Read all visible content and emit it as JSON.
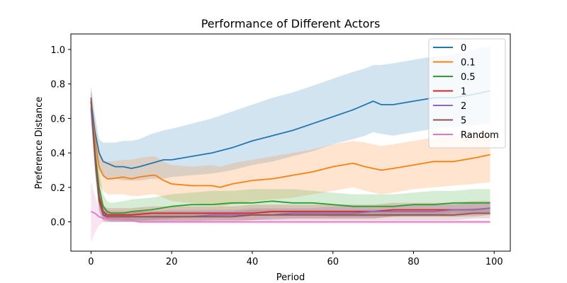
{
  "chart_data": {
    "type": "line",
    "title": "Performance of Different Actors",
    "xlabel": "Period",
    "ylabel": "Preference Distance",
    "xlim": [
      -5,
      104
    ],
    "ylim": [
      -0.17,
      1.09
    ],
    "xticks": [
      0,
      20,
      40,
      60,
      80,
      100
    ],
    "xtick_labels": [
      "0",
      "20",
      "40",
      "60",
      "80",
      "100"
    ],
    "yticks": [
      0.0,
      0.2,
      0.4,
      0.6,
      0.8,
      1.0
    ],
    "ytick_labels": [
      "0.0",
      "0.2",
      "0.4",
      "0.6",
      "0.8",
      "1.0"
    ],
    "grid": false,
    "legend_position": "top-right",
    "legend_labels": [
      "0",
      "0.1",
      "0.5",
      "1",
      "2",
      "5",
      "Random"
    ],
    "series": [
      {
        "name": "0",
        "color": "#1f77b4",
        "x": [
          0,
          1,
          2,
          3,
          4,
          5,
          6,
          8,
          10,
          12,
          15,
          18,
          20,
          25,
          30,
          35,
          40,
          45,
          50,
          55,
          60,
          65,
          68,
          70,
          72,
          75,
          80,
          85,
          90,
          95,
          99
        ],
        "mean": [
          0.7,
          0.52,
          0.4,
          0.35,
          0.34,
          0.33,
          0.32,
          0.32,
          0.31,
          0.32,
          0.34,
          0.36,
          0.36,
          0.38,
          0.4,
          0.43,
          0.47,
          0.5,
          0.53,
          0.57,
          0.61,
          0.65,
          0.68,
          0.7,
          0.68,
          0.68,
          0.7,
          0.72,
          0.72,
          0.74,
          0.76
        ],
        "upper": [
          0.79,
          0.62,
          0.48,
          0.46,
          0.46,
          0.46,
          0.46,
          0.47,
          0.47,
          0.48,
          0.51,
          0.53,
          0.54,
          0.57,
          0.6,
          0.64,
          0.68,
          0.72,
          0.75,
          0.79,
          0.83,
          0.87,
          0.89,
          0.91,
          0.91,
          0.92,
          0.94,
          0.96,
          0.97,
          1.0,
          1.02
        ],
        "lower": [
          0.61,
          0.42,
          0.3,
          0.26,
          0.25,
          0.25,
          0.25,
          0.24,
          0.24,
          0.24,
          0.25,
          0.25,
          0.26,
          0.27,
          0.28,
          0.3,
          0.33,
          0.35,
          0.38,
          0.41,
          0.45,
          0.48,
          0.5,
          0.52,
          0.51,
          0.5,
          0.52,
          0.54,
          0.55,
          0.56,
          0.57
        ]
      },
      {
        "name": "0.1",
        "color": "#ff7f0e",
        "x": [
          0,
          1,
          2,
          3,
          4,
          5,
          8,
          10,
          12,
          15,
          16,
          18,
          20,
          25,
          30,
          32,
          35,
          40,
          45,
          50,
          55,
          60,
          65,
          68,
          72,
          75,
          80,
          85,
          90,
          95,
          99
        ],
        "mean": [
          0.67,
          0.48,
          0.32,
          0.27,
          0.25,
          0.25,
          0.26,
          0.25,
          0.26,
          0.27,
          0.27,
          0.24,
          0.22,
          0.21,
          0.21,
          0.2,
          0.22,
          0.24,
          0.25,
          0.27,
          0.29,
          0.32,
          0.34,
          0.32,
          0.3,
          0.31,
          0.33,
          0.35,
          0.35,
          0.37,
          0.39
        ],
        "upper": [
          0.76,
          0.58,
          0.42,
          0.36,
          0.35,
          0.35,
          0.36,
          0.36,
          0.37,
          0.38,
          0.38,
          0.35,
          0.33,
          0.32,
          0.33,
          0.32,
          0.34,
          0.36,
          0.38,
          0.4,
          0.42,
          0.45,
          0.47,
          0.46,
          0.44,
          0.45,
          0.47,
          0.49,
          0.5,
          0.52,
          0.54
        ],
        "lower": [
          0.58,
          0.38,
          0.22,
          0.18,
          0.16,
          0.16,
          0.16,
          0.15,
          0.15,
          0.16,
          0.16,
          0.14,
          0.12,
          0.11,
          0.1,
          0.09,
          0.1,
          0.12,
          0.13,
          0.14,
          0.16,
          0.18,
          0.2,
          0.18,
          0.16,
          0.17,
          0.19,
          0.2,
          0.21,
          0.22,
          0.23
        ]
      },
      {
        "name": "0.5",
        "color": "#2ca02c",
        "x": [
          0,
          1,
          2,
          3,
          4,
          5,
          8,
          10,
          15,
          20,
          25,
          30,
          35,
          40,
          45,
          50,
          55,
          60,
          65,
          70,
          75,
          80,
          85,
          90,
          95,
          99
        ],
        "mean": [
          0.7,
          0.4,
          0.2,
          0.09,
          0.06,
          0.05,
          0.05,
          0.06,
          0.07,
          0.09,
          0.1,
          0.1,
          0.11,
          0.11,
          0.12,
          0.11,
          0.11,
          0.1,
          0.09,
          0.09,
          0.09,
          0.1,
          0.1,
          0.11,
          0.11,
          0.11
        ],
        "upper": [
          0.78,
          0.5,
          0.3,
          0.16,
          0.12,
          0.11,
          0.12,
          0.13,
          0.14,
          0.16,
          0.17,
          0.18,
          0.18,
          0.19,
          0.19,
          0.19,
          0.18,
          0.17,
          0.16,
          0.16,
          0.16,
          0.17,
          0.18,
          0.18,
          0.19,
          0.19
        ],
        "lower": [
          0.62,
          0.3,
          0.12,
          0.03,
          0.01,
          0.0,
          0.0,
          0.0,
          0.01,
          0.02,
          0.03,
          0.03,
          0.04,
          0.04,
          0.05,
          0.04,
          0.04,
          0.03,
          0.03,
          0.03,
          0.03,
          0.04,
          0.04,
          0.05,
          0.05,
          0.05
        ]
      },
      {
        "name": "1",
        "color": "#d62728",
        "x": [
          0,
          1,
          2,
          3,
          4,
          5,
          8,
          10,
          15,
          20,
          25,
          30,
          35,
          40,
          45,
          50,
          55,
          60,
          65,
          70,
          75,
          80,
          85,
          90,
          95,
          99
        ],
        "mean": [
          0.7,
          0.38,
          0.15,
          0.06,
          0.04,
          0.04,
          0.04,
          0.04,
          0.05,
          0.05,
          0.05,
          0.05,
          0.05,
          0.05,
          0.06,
          0.06,
          0.06,
          0.06,
          0.06,
          0.06,
          0.07,
          0.07,
          0.07,
          0.07,
          0.07,
          0.08
        ],
        "upper": [
          0.76,
          0.46,
          0.22,
          0.1,
          0.08,
          0.08,
          0.08,
          0.08,
          0.09,
          0.09,
          0.09,
          0.09,
          0.09,
          0.1,
          0.1,
          0.1,
          0.1,
          0.1,
          0.1,
          0.1,
          0.11,
          0.11,
          0.11,
          0.11,
          0.12,
          0.12
        ],
        "lower": [
          0.64,
          0.3,
          0.09,
          0.02,
          0.01,
          0.01,
          0.01,
          0.01,
          0.01,
          0.01,
          0.01,
          0.01,
          0.01,
          0.01,
          0.02,
          0.02,
          0.02,
          0.02,
          0.02,
          0.02,
          0.03,
          0.03,
          0.03,
          0.03,
          0.03,
          0.04
        ]
      },
      {
        "name": "2",
        "color": "#9467bd",
        "x": [
          0,
          1,
          2,
          3,
          4,
          5,
          8,
          10,
          15,
          20,
          25,
          30,
          35,
          40,
          45,
          50,
          55,
          60,
          65,
          70,
          75,
          80,
          85,
          90,
          95,
          99
        ],
        "mean": [
          0.66,
          0.36,
          0.12,
          0.05,
          0.03,
          0.03,
          0.03,
          0.03,
          0.03,
          0.03,
          0.03,
          0.04,
          0.04,
          0.04,
          0.04,
          0.05,
          0.05,
          0.05,
          0.05,
          0.06,
          0.06,
          0.06,
          0.06,
          0.07,
          0.07,
          0.08
        ],
        "upper": [
          0.72,
          0.44,
          0.19,
          0.09,
          0.07,
          0.06,
          0.06,
          0.06,
          0.06,
          0.07,
          0.07,
          0.07,
          0.07,
          0.08,
          0.08,
          0.08,
          0.08,
          0.09,
          0.09,
          0.09,
          0.09,
          0.1,
          0.1,
          0.1,
          0.11,
          0.11
        ],
        "lower": [
          0.6,
          0.28,
          0.06,
          0.01,
          0.0,
          0.0,
          0.0,
          0.0,
          0.0,
          0.0,
          0.0,
          0.01,
          0.01,
          0.01,
          0.01,
          0.02,
          0.02,
          0.02,
          0.02,
          0.02,
          0.03,
          0.03,
          0.03,
          0.03,
          0.04,
          0.04
        ]
      },
      {
        "name": "5",
        "color": "#8c564b",
        "x": [
          0,
          1,
          2,
          3,
          4,
          5,
          8,
          10,
          15,
          20,
          25,
          30,
          35,
          40,
          45,
          50,
          55,
          60,
          65,
          70,
          75,
          80,
          85,
          90,
          95,
          99
        ],
        "mean": [
          0.72,
          0.38,
          0.12,
          0.04,
          0.03,
          0.03,
          0.03,
          0.03,
          0.03,
          0.03,
          0.03,
          0.03,
          0.03,
          0.04,
          0.04,
          0.04,
          0.04,
          0.04,
          0.04,
          0.04,
          0.04,
          0.04,
          0.04,
          0.04,
          0.05,
          0.05
        ],
        "upper": [
          0.78,
          0.46,
          0.18,
          0.08,
          0.06,
          0.06,
          0.06,
          0.06,
          0.06,
          0.06,
          0.06,
          0.06,
          0.06,
          0.07,
          0.07,
          0.07,
          0.07,
          0.07,
          0.07,
          0.07,
          0.07,
          0.07,
          0.07,
          0.07,
          0.08,
          0.08
        ],
        "lower": [
          0.66,
          0.3,
          0.06,
          0.0,
          0.0,
          0.0,
          0.0,
          0.0,
          0.0,
          0.0,
          0.0,
          0.0,
          0.0,
          0.01,
          0.01,
          0.01,
          0.01,
          0.01,
          0.01,
          0.01,
          0.01,
          0.01,
          0.01,
          0.01,
          0.02,
          0.02
        ]
      },
      {
        "name": "Random",
        "color": "#e377c2",
        "x": [
          0,
          1,
          2,
          3,
          4,
          5,
          6,
          8,
          10,
          12,
          15,
          20,
          30,
          40,
          50,
          60,
          70,
          80,
          90,
          99
        ],
        "mean": [
          0.06,
          0.05,
          0.03,
          0.02,
          0.02,
          0.02,
          0.02,
          0.01,
          0.01,
          0.0,
          0.0,
          0.0,
          0.0,
          0.0,
          0.0,
          0.0,
          0.0,
          0.0,
          0.0,
          0.0
        ],
        "upper": [
          0.23,
          0.15,
          0.08,
          0.05,
          0.04,
          0.04,
          0.04,
          0.03,
          0.02,
          0.01,
          0.01,
          0.01,
          0.01,
          0.01,
          0.01,
          0.01,
          0.01,
          0.01,
          0.01,
          0.01
        ],
        "lower": [
          -0.12,
          -0.06,
          -0.02,
          0.0,
          0.0,
          0.0,
          0.0,
          0.0,
          0.0,
          -0.01,
          -0.01,
          -0.01,
          -0.01,
          -0.01,
          -0.01,
          -0.01,
          -0.01,
          -0.01,
          -0.01,
          -0.01
        ]
      }
    ]
  }
}
